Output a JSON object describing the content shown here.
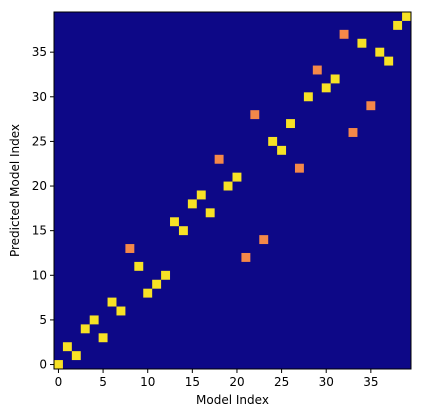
{
  "chart_data": {
    "type": "heatmap",
    "xlabel": "Model Index",
    "ylabel": "Predicted Model Index",
    "xlim": [
      -0.5,
      39.5
    ],
    "ylim": [
      -0.5,
      39.5
    ],
    "xticks": [
      0,
      5,
      10,
      15,
      20,
      25,
      30,
      35
    ],
    "yticks": [
      0,
      5,
      10,
      15,
      20,
      25,
      30,
      35
    ],
    "grid": false,
    "colors": {
      "background": "#0d0887",
      "high": "#f7e225",
      "medium": "#f48849"
    },
    "cells": [
      {
        "x": 0,
        "y": 0,
        "value": 1.0
      },
      {
        "x": 1,
        "y": 2,
        "value": 1.0
      },
      {
        "x": 2,
        "y": 1,
        "value": 1.0
      },
      {
        "x": 3,
        "y": 4,
        "value": 1.0
      },
      {
        "x": 4,
        "y": 5,
        "value": 1.0
      },
      {
        "x": 5,
        "y": 3,
        "value": 1.0
      },
      {
        "x": 6,
        "y": 7,
        "value": 1.0
      },
      {
        "x": 7,
        "y": 6,
        "value": 1.0
      },
      {
        "x": 8,
        "y": 13,
        "value": 0.6
      },
      {
        "x": 9,
        "y": 11,
        "value": 1.0
      },
      {
        "x": 10,
        "y": 8,
        "value": 1.0
      },
      {
        "x": 11,
        "y": 9,
        "value": 1.0
      },
      {
        "x": 12,
        "y": 10,
        "value": 1.0
      },
      {
        "x": 13,
        "y": 16,
        "value": 1.0
      },
      {
        "x": 14,
        "y": 15,
        "value": 1.0
      },
      {
        "x": 15,
        "y": 18,
        "value": 1.0
      },
      {
        "x": 16,
        "y": 19,
        "value": 1.0
      },
      {
        "x": 17,
        "y": 17,
        "value": 1.0
      },
      {
        "x": 18,
        "y": 23,
        "value": 0.6
      },
      {
        "x": 19,
        "y": 20,
        "value": 1.0
      },
      {
        "x": 20,
        "y": 21,
        "value": 1.0
      },
      {
        "x": 21,
        "y": 12,
        "value": 0.6
      },
      {
        "x": 22,
        "y": 28,
        "value": 0.6
      },
      {
        "x": 23,
        "y": 14,
        "value": 0.6
      },
      {
        "x": 24,
        "y": 25,
        "value": 1.0
      },
      {
        "x": 25,
        "y": 24,
        "value": 1.0
      },
      {
        "x": 26,
        "y": 27,
        "value": 1.0
      },
      {
        "x": 27,
        "y": 22,
        "value": 0.6
      },
      {
        "x": 28,
        "y": 30,
        "value": 1.0
      },
      {
        "x": 29,
        "y": 33,
        "value": 0.6
      },
      {
        "x": 30,
        "y": 31,
        "value": 1.0
      },
      {
        "x": 31,
        "y": 32,
        "value": 1.0
      },
      {
        "x": 32,
        "y": 37,
        "value": 0.6
      },
      {
        "x": 33,
        "y": 26,
        "value": 0.6
      },
      {
        "x": 34,
        "y": 36,
        "value": 1.0
      },
      {
        "x": 35,
        "y": 29,
        "value": 0.6
      },
      {
        "x": 36,
        "y": 35,
        "value": 1.0
      },
      {
        "x": 37,
        "y": 34,
        "value": 1.0
      },
      {
        "x": 38,
        "y": 38,
        "value": 1.0
      },
      {
        "x": 39,
        "y": 39,
        "value": 1.0
      }
    ]
  }
}
